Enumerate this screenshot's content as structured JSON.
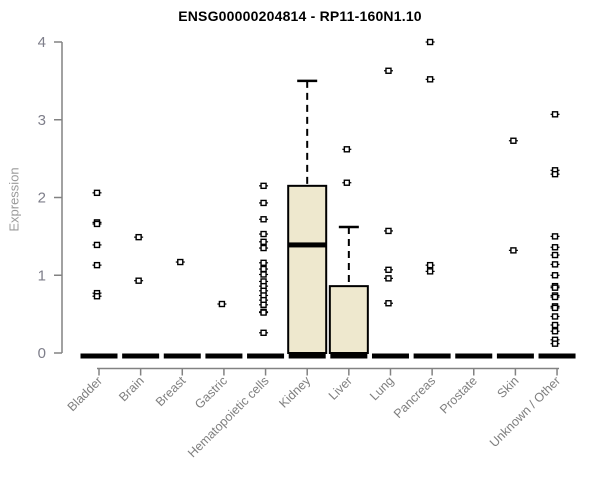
{
  "page": {
    "background": "#ffffff"
  },
  "chart_data": {
    "type": "boxplot",
    "title": "ENSG00000204814 - RP11-160N1.10",
    "ylabel": "Expression",
    "xlabel": "",
    "ylim": [
      0,
      4
    ],
    "yticks": [
      "0",
      "1",
      "2",
      "3",
      "4"
    ],
    "grid": false,
    "legend": "none",
    "categories": [
      "Bladder",
      "Brain",
      "Breast",
      "Gastric",
      "Hematopoietic cells",
      "Kidney",
      "Liver",
      "Lung",
      "Pancreas",
      "Prostate",
      "Skin",
      "Unknown / Other"
    ],
    "boxes": [
      {
        "category": "Bladder",
        "q1": 0,
        "median": 0,
        "q3": 0,
        "whisker_high": 0,
        "points": [
          2.06,
          1.68,
          1.66,
          1.39,
          1.13,
          0.77,
          0.73
        ]
      },
      {
        "category": "Brain",
        "q1": 0,
        "median": 0,
        "q3": 0,
        "whisker_high": 0,
        "points": [
          1.49,
          0.93
        ]
      },
      {
        "category": "Breast",
        "q1": 0,
        "median": 0,
        "q3": 0,
        "whisker_high": 0,
        "points": [
          1.17
        ]
      },
      {
        "category": "Gastric",
        "q1": 0,
        "median": 0,
        "q3": 0,
        "whisker_high": 0,
        "points": [
          0.63
        ]
      },
      {
        "category": "Hematopoietic cells",
        "q1": 0,
        "median": 0,
        "q3": 0,
        "whisker_high": 0,
        "points": [
          2.15,
          1.93,
          1.72,
          1.53,
          1.43,
          1.35,
          1.16,
          1.08,
          1.01,
          0.92,
          0.86,
          0.8,
          0.74,
          0.68,
          0.62,
          0.53,
          0.52,
          0.26
        ]
      },
      {
        "category": "Kidney",
        "q1": 0,
        "median": 1.39,
        "q3": 2.15,
        "whisker_high": 3.5,
        "points": []
      },
      {
        "category": "Liver",
        "q1": 0,
        "median": 0,
        "q3": 0.86,
        "whisker_high": 1.62,
        "points": [
          2.62,
          2.19
        ]
      },
      {
        "category": "Lung",
        "q1": 0,
        "median": 0,
        "q3": 0,
        "whisker_high": 0,
        "points": [
          3.63,
          1.57,
          1.07,
          0.96,
          0.64
        ]
      },
      {
        "category": "Pancreas",
        "q1": 0,
        "median": 0,
        "q3": 0,
        "whisker_high": 0,
        "points": [
          4.0,
          3.52,
          1.13,
          1.05
        ]
      },
      {
        "category": "Prostate",
        "q1": 0,
        "median": 0,
        "q3": 0,
        "whisker_high": 0,
        "points": []
      },
      {
        "category": "Skin",
        "q1": 0,
        "median": 0,
        "q3": 0,
        "whisker_high": 0,
        "points": [
          2.73,
          1.32
        ]
      },
      {
        "category": "Unknown / Other",
        "q1": 0,
        "median": 0,
        "q3": 0,
        "whisker_high": 0,
        "points": [
          3.07,
          2.35,
          2.3,
          1.5,
          1.36,
          1.26,
          1.14,
          1.0,
          0.86,
          0.84,
          0.74,
          0.72,
          0.6,
          0.58,
          0.47,
          0.36,
          0.28,
          0.17,
          0.12
        ]
      }
    ]
  },
  "colors": {
    "box_fill": "#EEE8CE",
    "box_border": "#000000",
    "median": "#000000",
    "whisker": "#000000",
    "marker": "#000000",
    "axis": "#828282",
    "y_tick_label": "#7E7E8A",
    "x_tick_label": "#7F7F7F",
    "ylabel": "#9A9A9A",
    "title": "#000000"
  }
}
